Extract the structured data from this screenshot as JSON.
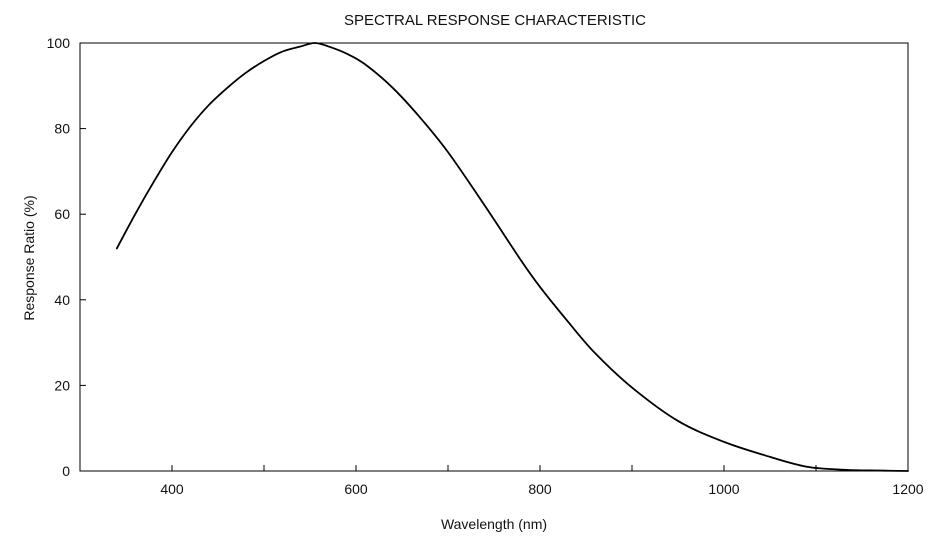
{
  "chart_data": {
    "type": "line",
    "title": "SPECTRAL RESPONSE CHARACTERISTIC",
    "xlabel": "Wavelength (nm)",
    "ylabel": "Response Ratio (%)",
    "xlim": [
      300,
      1200
    ],
    "ylim": [
      0,
      100
    ],
    "xticks_major": [
      400,
      600,
      800,
      1000,
      1200
    ],
    "xticks_minor": [
      500,
      700,
      900,
      1100
    ],
    "yticks": [
      0,
      20,
      40,
      60,
      80,
      100
    ],
    "grid": false,
    "series": [
      {
        "color": "#000000",
        "x": [
          340,
          360,
          380,
          400,
          420,
          440,
          460,
          480,
          500,
          520,
          540,
          555,
          570,
          590,
          610,
          640,
          670,
          700,
          740,
          780,
          800,
          830,
          860,
          900,
          950,
          1000,
          1050,
          1090,
          1130,
          1170,
          1200
        ],
        "y": [
          52,
          60,
          67.5,
          74.5,
          80.5,
          85.5,
          89.5,
          93,
          95.8,
          98,
          99.2,
          100,
          99.2,
          97.5,
          95,
          89.5,
          82.5,
          74.5,
          62,
          49,
          43,
          35,
          27.5,
          19.5,
          11.7,
          6.8,
          3.3,
          1,
          0.3,
          0.1,
          0
        ]
      }
    ]
  }
}
